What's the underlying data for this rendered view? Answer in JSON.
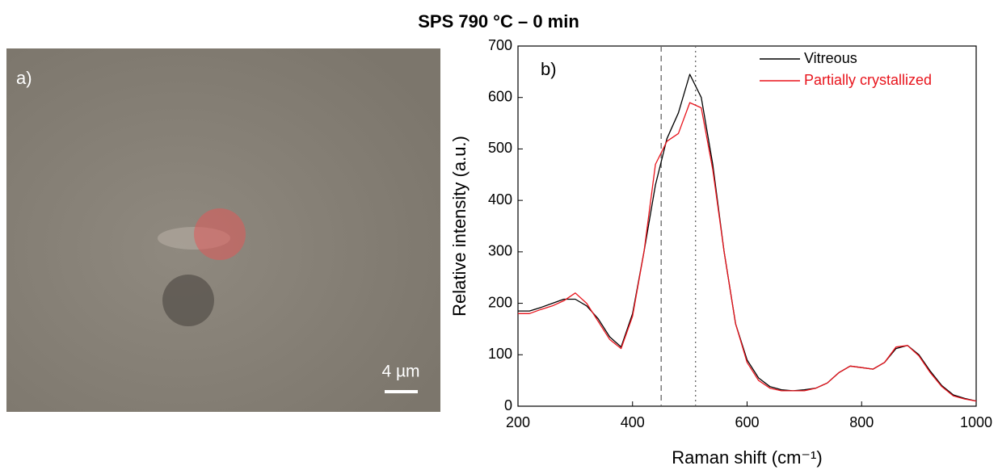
{
  "title": "SPS 790 °C – 0 min",
  "micrograph": {
    "label": "a)",
    "scale_bar": "4 µm"
  },
  "chart_data": {
    "type": "line",
    "panel_label": "b)",
    "xlabel": "Raman shift (cm⁻¹)",
    "ylabel": "Relative intensity (a.u.)",
    "x": [
      200,
      220,
      240,
      260,
      280,
      300,
      320,
      340,
      360,
      380,
      400,
      420,
      440,
      460,
      480,
      500,
      520,
      540,
      560,
      580,
      600,
      620,
      640,
      660,
      680,
      700,
      720,
      740,
      760,
      780,
      800,
      820,
      840,
      860,
      880,
      900,
      920,
      940,
      960,
      980,
      1000
    ],
    "series": [
      {
        "name": "Vitreous",
        "color": "#000000",
        "values": [
          185,
          185,
          192,
          200,
          208,
          208,
          195,
          170,
          135,
          115,
          180,
          300,
          430,
          520,
          570,
          645,
          600,
          470,
          300,
          160,
          90,
          55,
          38,
          32,
          30,
          32,
          35,
          45,
          65,
          78,
          75,
          72,
          85,
          112,
          118,
          100,
          68,
          40,
          22,
          15,
          10
        ]
      },
      {
        "name": "Partially crystallized",
        "color": "#e8141c",
        "values": [
          180,
          180,
          188,
          195,
          205,
          220,
          200,
          165,
          130,
          112,
          175,
          300,
          470,
          515,
          530,
          590,
          580,
          460,
          300,
          160,
          85,
          50,
          35,
          30,
          30,
          30,
          35,
          45,
          65,
          78,
          75,
          72,
          85,
          115,
          118,
          98,
          65,
          38,
          20,
          14,
          10
        ]
      }
    ],
    "vlines": [
      {
        "x": 450,
        "style": "dashed"
      },
      {
        "x": 510,
        "style": "dotted"
      }
    ],
    "xlim": [
      200,
      1000
    ],
    "xticks": [
      200,
      400,
      600,
      800,
      1000
    ],
    "ylim": [
      0,
      700
    ],
    "yticks": [
      0,
      100,
      200,
      300,
      400,
      500,
      600,
      700
    ],
    "legend": "upper right"
  }
}
